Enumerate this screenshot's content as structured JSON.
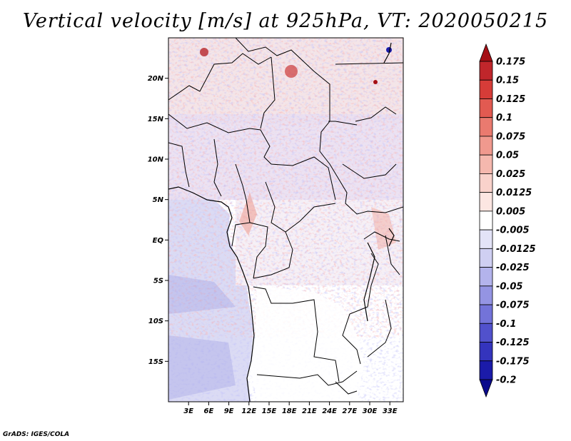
{
  "title": "Vertical velocity [m/s] at 925hPa, VT: 2020050215",
  "credit": "GrADS: IGES/COLA",
  "map": {
    "lon_range": [
      0,
      35
    ],
    "lat_range": [
      -20,
      25
    ],
    "lat_ticks": [
      {
        "value": 20,
        "label": "20N"
      },
      {
        "value": 15,
        "label": "15N"
      },
      {
        "value": 10,
        "label": "10N"
      },
      {
        "value": 5,
        "label": "5N"
      },
      {
        "value": 0,
        "label": "EQ"
      },
      {
        "value": -5,
        "label": "5S"
      },
      {
        "value": -10,
        "label": "10S"
      },
      {
        "value": -15,
        "label": "15S"
      }
    ],
    "lon_ticks": [
      {
        "value": 3,
        "label": "3E"
      },
      {
        "value": 6,
        "label": "6E"
      },
      {
        "value": 9,
        "label": "9E"
      },
      {
        "value": 12,
        "label": "12E"
      },
      {
        "value": 15,
        "label": "15E"
      },
      {
        "value": 18,
        "label": "18E"
      },
      {
        "value": 21,
        "label": "21E"
      },
      {
        "value": 24,
        "label": "24E"
      },
      {
        "value": 27,
        "label": "27E"
      },
      {
        "value": 30,
        "label": "30E"
      },
      {
        "value": 33,
        "label": "33E"
      }
    ]
  },
  "colorbar": {
    "colors": [
      "#a50f15",
      "#c0262b",
      "#d63c38",
      "#e25a51",
      "#ea7a6f",
      "#f0998e",
      "#f5b8ae",
      "#f9d2cb",
      "#fce6e2",
      "#ffffff",
      "#e3e3f7",
      "#cfcff2",
      "#b3b3ec",
      "#9494e3",
      "#7373d9",
      "#5151cc",
      "#3434bd",
      "#1b1ba9",
      "#0a0a8c"
    ],
    "labels": [
      "0.175",
      "0.15",
      "0.125",
      "0.1",
      "0.075",
      "0.05",
      "0.025",
      "0.0125",
      "0.005",
      "-0.005",
      "-0.0125",
      "-0.025",
      "-0.05",
      "-0.075",
      "-0.1",
      "-0.125",
      "-0.175",
      "-0.2"
    ]
  }
}
